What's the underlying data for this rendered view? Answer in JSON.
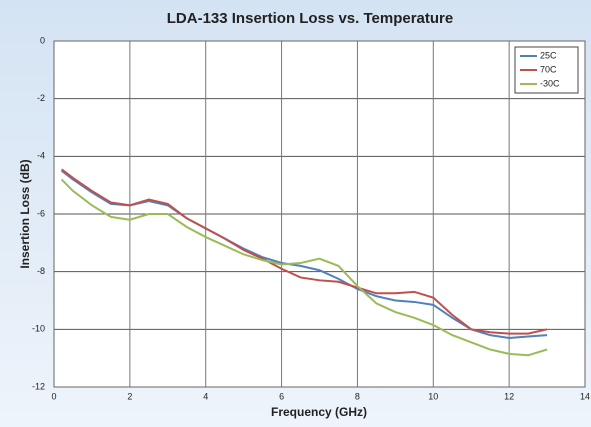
{
  "chart_data": {
    "type": "line",
    "title": "LDA-133 Insertion Loss vs. Temperature",
    "x_label": "Frequency (GHz)",
    "y_label": "Insertion Loss (dB)",
    "x": [
      0.2,
      0.5,
      1,
      1.5,
      2,
      2.5,
      3,
      3.5,
      4,
      4.5,
      5,
      5.5,
      6,
      6.5,
      7,
      7.5,
      8,
      8.5,
      9,
      9.5,
      10,
      10.5,
      11,
      11.5,
      12,
      12.5,
      13
    ],
    "series": [
      {
        "name": "25C",
        "color": "#4f81bd",
        "values": [
          -4.5,
          -4.8,
          -5.25,
          -5.65,
          -5.7,
          -5.55,
          -5.7,
          -6.15,
          -6.5,
          -6.85,
          -7.2,
          -7.5,
          -7.7,
          -7.8,
          -7.95,
          -8.25,
          -8.6,
          -8.85,
          -9.0,
          -9.05,
          -9.15,
          -9.6,
          -10.0,
          -10.2,
          -10.3,
          -10.25,
          -10.2
        ]
      },
      {
        "name": "70C",
        "color": "#c0504d",
        "values": [
          -4.45,
          -4.75,
          -5.2,
          -5.6,
          -5.7,
          -5.5,
          -5.65,
          -6.15,
          -6.5,
          -6.85,
          -7.25,
          -7.55,
          -7.9,
          -8.2,
          -8.3,
          -8.35,
          -8.55,
          -8.75,
          -8.75,
          -8.7,
          -8.9,
          -9.5,
          -10.0,
          -10.1,
          -10.15,
          -10.15,
          -10.0
        ]
      },
      {
        "name": "-30C",
        "color": "#9bbb59",
        "values": [
          -4.8,
          -5.2,
          -5.7,
          -6.1,
          -6.2,
          -6.0,
          -6.0,
          -6.45,
          -6.8,
          -7.1,
          -7.4,
          -7.6,
          -7.75,
          -7.7,
          -7.55,
          -7.8,
          -8.5,
          -9.1,
          -9.4,
          -9.6,
          -9.85,
          -10.2,
          -10.45,
          -10.7,
          -10.85,
          -10.9,
          -10.7
        ]
      }
    ],
    "xlim": [
      0,
      14
    ],
    "xticks": [
      0,
      2,
      4,
      6,
      8,
      10,
      12,
      14
    ],
    "ylim": [
      -12,
      0
    ],
    "yticks": [
      0,
      -2,
      -4,
      -6,
      -8,
      -10,
      -12
    ],
    "grid": true,
    "legend": "upper right"
  }
}
